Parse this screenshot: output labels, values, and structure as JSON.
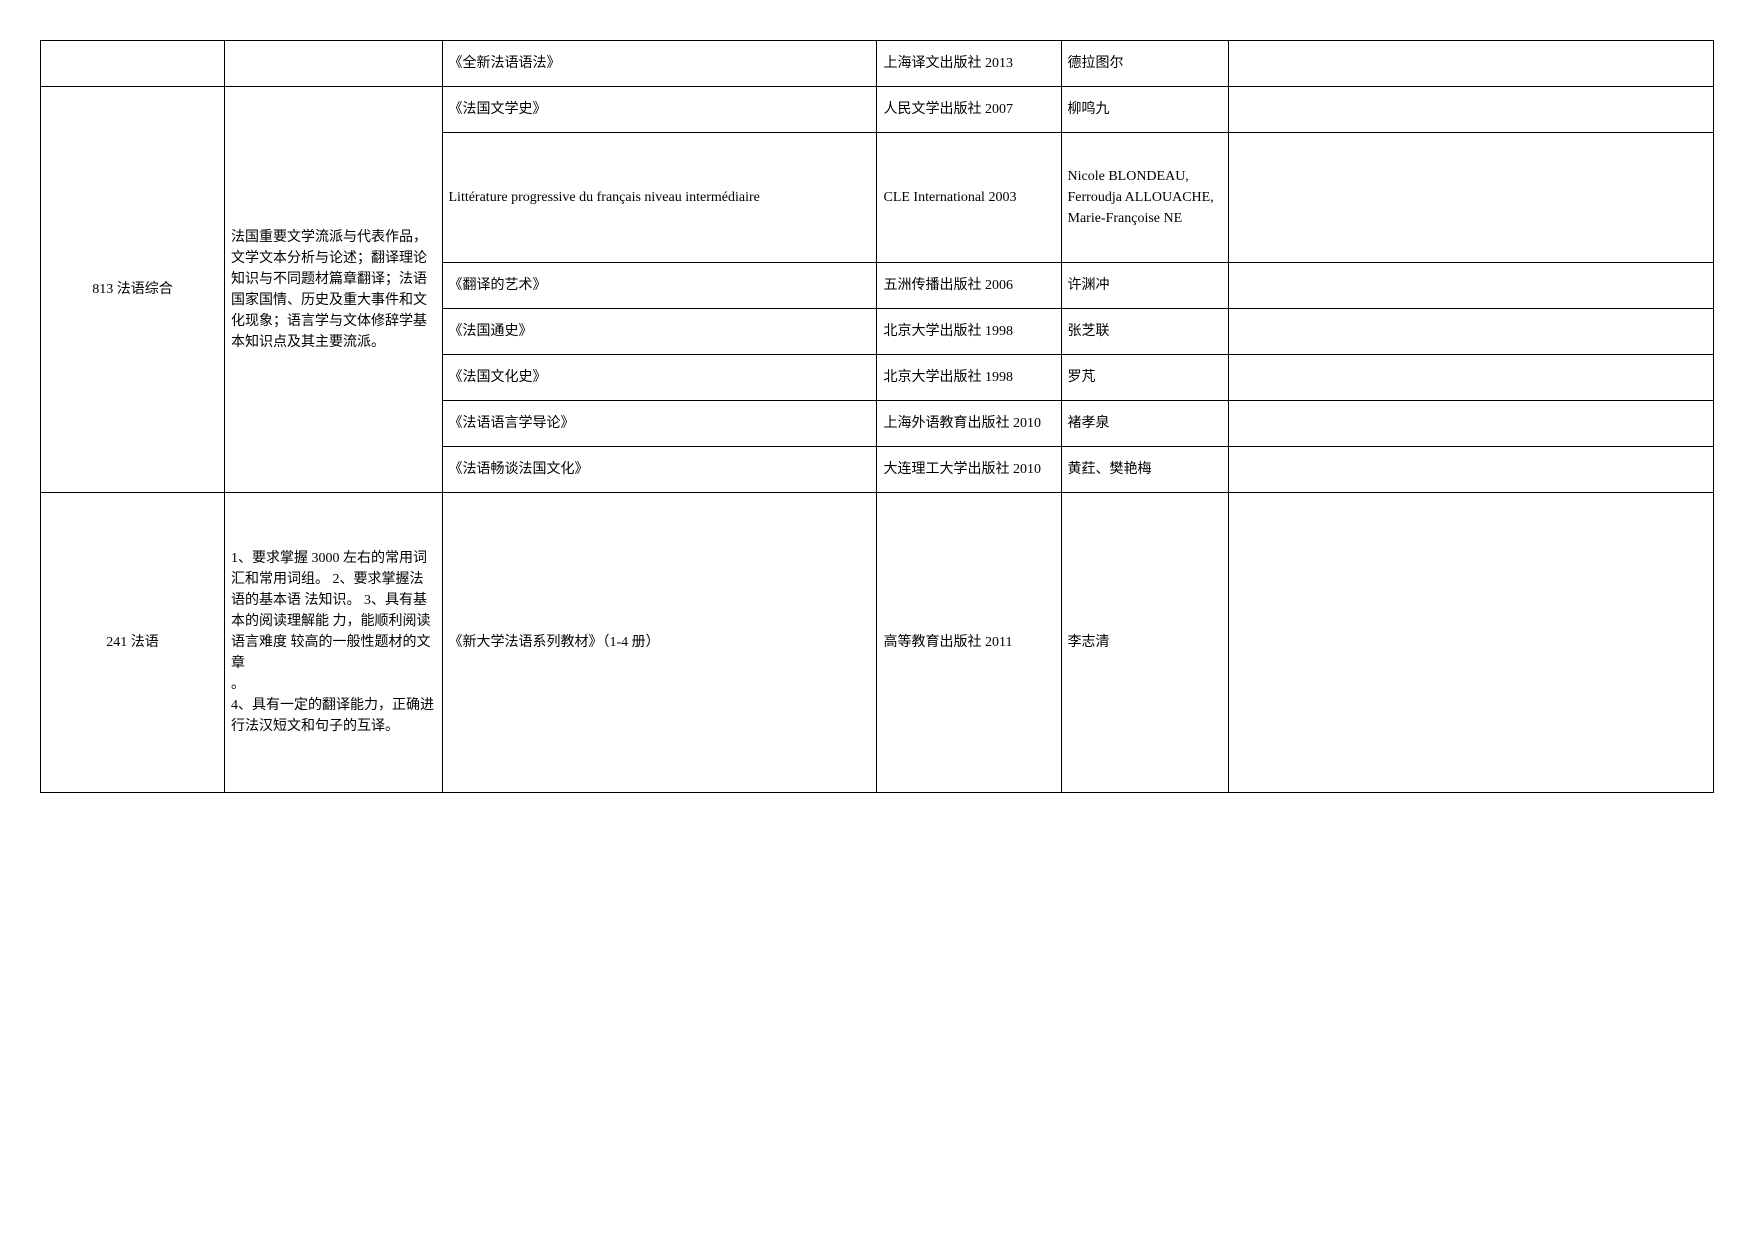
{
  "rows": [
    {
      "code": "",
      "desc": "",
      "book": "《全新法语语法》",
      "pub": "上海译文出版社 2013",
      "auth": "德拉图尔",
      "note": ""
    },
    {
      "book": "《法国文学史》",
      "pub": "人民文学出版社 2007",
      "auth": "柳鸣九",
      "note": ""
    },
    {
      "book": "Littérature progressive du français niveau intermédiaire",
      "pub": "CLE International 2003",
      "auth": "Nicole BLONDEAU, Ferroudja ALLOUACHE, Marie-Françoise NE",
      "note": ""
    },
    {
      "book": "《翻译的艺术》",
      "pub": "五洲传播出版社 2006",
      "auth": "许渊冲",
      "note": ""
    },
    {
      "book": "《法国通史》",
      "pub": "北京大学出版社 1998",
      "auth": "张芝联",
      "note": ""
    },
    {
      "book": "《法国文化史》",
      "pub": "北京大学出版社 1998",
      "auth": "罗芃",
      "note": ""
    },
    {
      "book": "《法语语言学导论》",
      "pub": "上海外语教育出版社 2010",
      "auth": "褚孝泉",
      "note": ""
    },
    {
      "book": "《法语畅谈法国文化》",
      "pub": "大连理工大学出版社 2010",
      "auth": "黄荭、樊艳梅",
      "note": ""
    }
  ],
  "group813": {
    "code": "813 法语综合",
    "desc": "法国重要文学流派与代表作品，文学文本分析与论述；翻译理论知识与不同题材篇章翻译；法语国家国情、历史及重大事件和文化现象；语言学与文体修辞学基本知识点及其主要流派。"
  },
  "row241": {
    "code": "241 法语",
    "desc": "1、要求掌握 3000 左右的常用词汇和常用词组。 2、要求掌握法语的基本语 法知识。 3、具有基本的阅读理解能 力，能顺利阅读语言难度 较高的一般性题材的文章\n。\n4、具有一定的翻译能力，正确进行法汉短文和句子的互译。",
    "book": "《新大学法语系列教材》（1-4 册）",
    "pub": "高等教育出版社 2011",
    "auth": "李志清",
    "note": ""
  }
}
